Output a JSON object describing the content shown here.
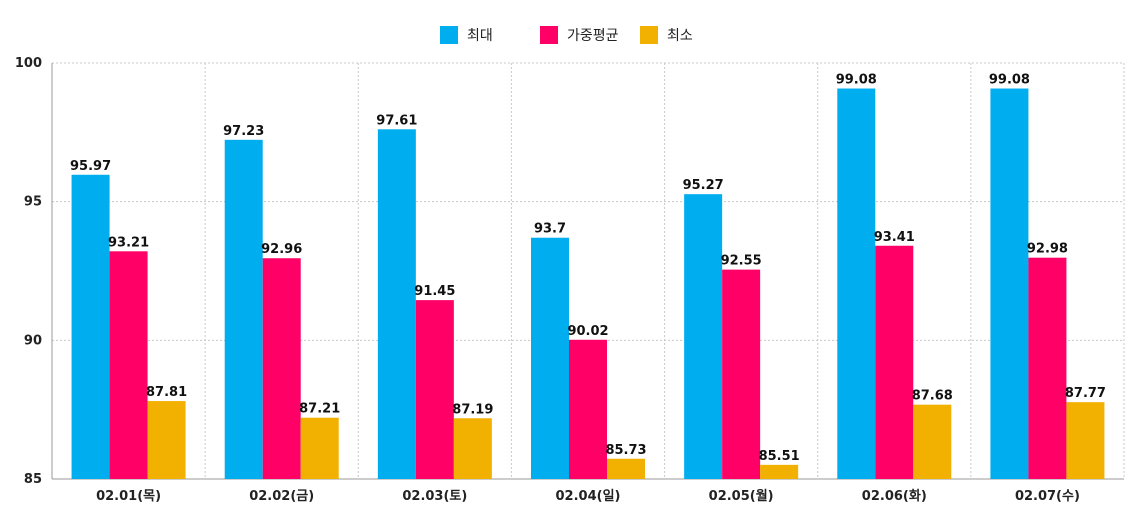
{
  "chart_data": {
    "type": "bar",
    "categories": [
      "02.01(목)",
      "02.02(금)",
      "02.03(토)",
      "02.04(일)",
      "02.05(월)",
      "02.06(화)",
      "02.07(수)"
    ],
    "series": [
      {
        "name": "최대",
        "color": "#00aeef",
        "values": [
          95.97,
          97.23,
          97.61,
          93.7,
          95.27,
          99.08,
          99.08
        ]
      },
      {
        "name": "가중평균",
        "color": "#ff0066",
        "values": [
          93.21,
          92.96,
          91.45,
          90.02,
          92.55,
          93.41,
          92.98
        ]
      },
      {
        "name": "최소",
        "color": "#f2b000",
        "values": [
          87.81,
          87.21,
          87.19,
          85.73,
          85.51,
          87.68,
          87.77
        ]
      }
    ],
    "ylim": [
      85,
      100
    ],
    "yticks": [
      85,
      90,
      95,
      100
    ],
    "grid": true,
    "legend_position": "top-center",
    "title": "",
    "xlabel": "",
    "ylabel": ""
  }
}
